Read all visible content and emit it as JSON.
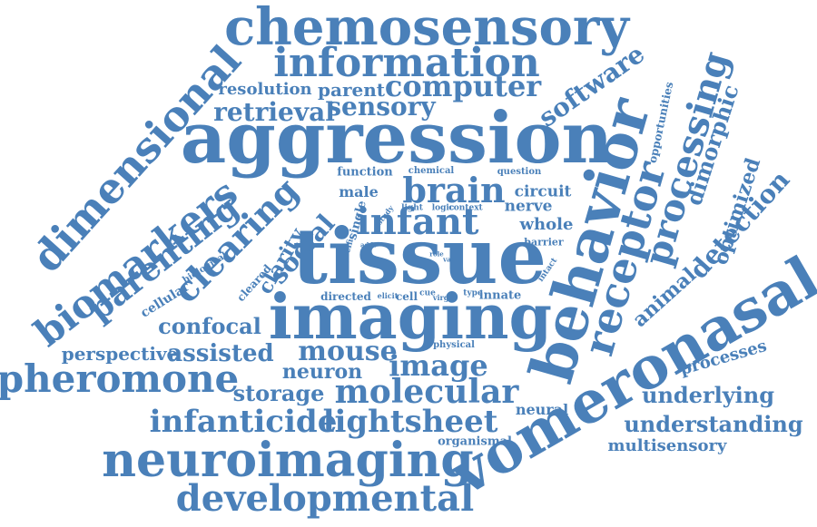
{
  "color": "#4a80b9",
  "words": [
    {
      "text": "chemosensory"
    },
    {
      "text": "information"
    },
    {
      "text": "aggression"
    },
    {
      "text": "tissue"
    },
    {
      "text": "imaging"
    },
    {
      "text": "behavior"
    },
    {
      "text": "vomeronasal"
    },
    {
      "text": "neuroimaging"
    },
    {
      "text": "developmental"
    },
    {
      "text": "infanticide"
    },
    {
      "text": "lightsheet"
    },
    {
      "text": "molecular"
    },
    {
      "text": "pheromone"
    },
    {
      "text": "dimensional"
    },
    {
      "text": "biomarkers"
    },
    {
      "text": "parenting"
    },
    {
      "text": "clearing"
    },
    {
      "text": "receptor"
    },
    {
      "text": "processing"
    },
    {
      "text": "infant"
    },
    {
      "text": "brain"
    },
    {
      "text": "computer"
    },
    {
      "text": "software"
    },
    {
      "text": "detection"
    },
    {
      "text": "dimorphic"
    },
    {
      "text": "optimized"
    },
    {
      "text": "resolution"
    },
    {
      "text": "parent"
    },
    {
      "text": "retrieval"
    },
    {
      "text": "sensory"
    },
    {
      "text": "confocal"
    },
    {
      "text": "perspective"
    },
    {
      "text": "assisted"
    },
    {
      "text": "mouse"
    },
    {
      "text": "neuron"
    },
    {
      "text": "image"
    },
    {
      "text": "storage"
    },
    {
      "text": "underlying"
    },
    {
      "text": "understanding"
    },
    {
      "text": "multisensory"
    },
    {
      "text": "processes"
    },
    {
      "text": "animal"
    },
    {
      "text": "opportunities"
    },
    {
      "text": "social"
    },
    {
      "text": "clarity"
    },
    {
      "text": "cellular"
    },
    {
      "text": "biological"
    },
    {
      "text": "cleared"
    },
    {
      "text": "directed"
    },
    {
      "text": "elicit"
    },
    {
      "text": "cell"
    },
    {
      "text": "cue"
    },
    {
      "text": "virgin"
    },
    {
      "text": "type"
    },
    {
      "text": "innate"
    },
    {
      "text": "neural"
    },
    {
      "text": "organismal"
    },
    {
      "text": "physical"
    },
    {
      "text": "male"
    },
    {
      "text": "function"
    },
    {
      "text": "chemical"
    },
    {
      "text": "question"
    },
    {
      "text": "circuit"
    },
    {
      "text": "nerve"
    },
    {
      "text": "whole"
    },
    {
      "text": "study"
    },
    {
      "text": "light"
    },
    {
      "text": "logic"
    },
    {
      "text": "context"
    },
    {
      "text": "single"
    },
    {
      "text": "specific"
    },
    {
      "text": "addr"
    },
    {
      "text": "role"
    },
    {
      "text": "vast"
    },
    {
      "text": "barrier"
    },
    {
      "text": "intact"
    }
  ]
}
